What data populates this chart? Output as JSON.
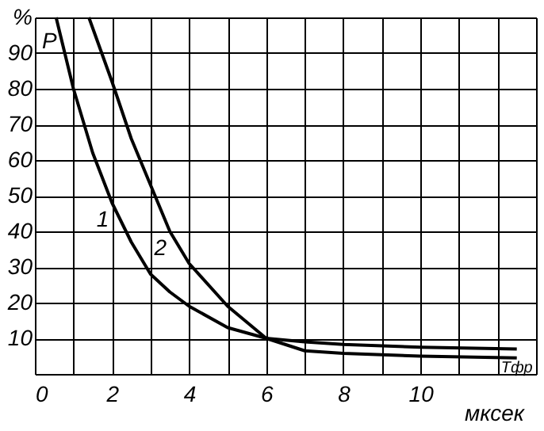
{
  "chart_data": {
    "type": "line",
    "xlabel": "мксек",
    "ylabel": "P",
    "series": [
      {
        "color": "#000000",
        "x": [
          0.55,
          1,
          1.5,
          2,
          2.5,
          3,
          3.5,
          4,
          5,
          6,
          7,
          8,
          10,
          12.5
        ],
        "values": [
          100,
          80,
          62,
          48,
          37,
          28,
          23,
          19,
          13,
          10,
          9,
          8.3,
          7.5,
          7
        ]
      },
      {
        "color": "#000000",
        "x": [
          1.4,
          2,
          2.5,
          3,
          3.5,
          4,
          5,
          6,
          7,
          8,
          10,
          12.5
        ],
        "values": [
          100,
          82,
          66,
          53,
          40,
          31,
          19,
          10,
          6.5,
          5.8,
          5,
          4.5
        ]
      }
    ],
    "xlim": [
      0,
      13
    ],
    "ylim": [
      0,
      100
    ],
    "xticks": [
      0,
      {
        "value": 1,
        "label": null
      },
      2,
      {
        "value": 3,
        "label": null
      },
      4,
      {
        "value": 5,
        "label": null
      },
      6,
      {
        "value": 7,
        "label": null
      },
      8,
      {
        "value": 9,
        "label": null
      },
      10,
      {
        "value": 11,
        "label": null
      },
      {
        "value": 12,
        "label": null
      },
      {
        "value": 13,
        "label": null
      }
    ],
    "yticks": [
      10,
      20,
      30,
      40,
      50,
      60,
      70,
      80,
      90,
      {
        "value": 100,
        "label": "%"
      }
    ],
    "annotations": [
      {
        "text": "1",
        "x": 2,
        "y": 48
      },
      {
        "text": "2",
        "x": 3.5,
        "y": 40
      },
      {
        "text": "Тфр",
        "x": 12.5,
        "y": 4.5
      }
    ],
    "grid": true,
    "legend": false,
    "marker": "none",
    "line_style": "solid"
  }
}
